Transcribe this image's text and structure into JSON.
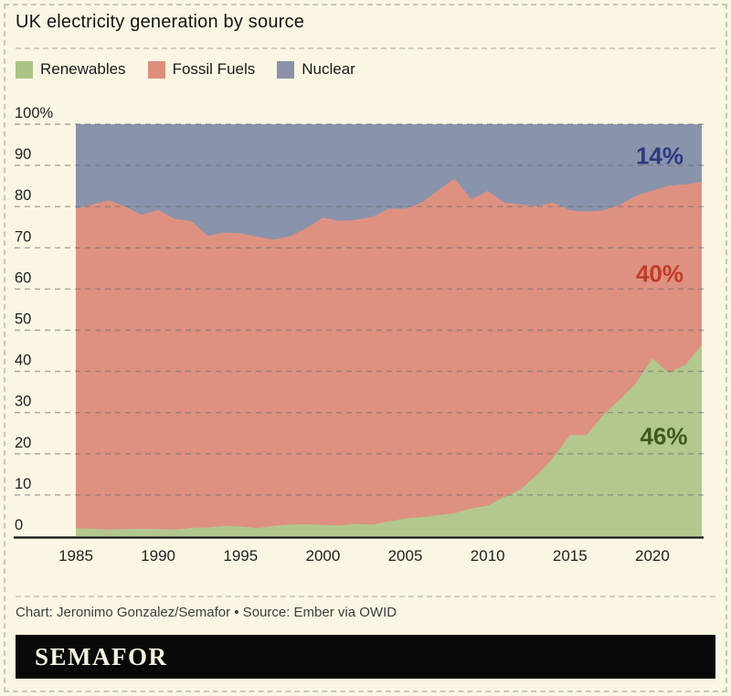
{
  "page": {
    "background": "#faf6e3",
    "border_color": "#c7c7b9"
  },
  "header": {
    "title": "UK electricity generation by source"
  },
  "legend": {
    "items": [
      {
        "label": "Renewables",
        "color": "#aac483"
      },
      {
        "label": "Fossil Fuels",
        "color": "#dd8f7c"
      },
      {
        "label": "Nuclear",
        "color": "#8a92ab"
      }
    ]
  },
  "chart_data": {
    "type": "area",
    "stacked": true,
    "unit": "percent of generation",
    "title": "UK electricity generation by source",
    "xlabel": "",
    "ylabel": "",
    "ylim": [
      0,
      100
    ],
    "yticks": [
      0,
      10,
      20,
      30,
      40,
      50,
      60,
      70,
      80,
      90,
      100
    ],
    "ytick_top_label": "100%",
    "xticks": [
      1985,
      1990,
      1995,
      2000,
      2005,
      2010,
      2015,
      2020
    ],
    "grid": "horizontal-dashed",
    "legend_position": "top",
    "x": [
      1985,
      1986,
      1987,
      1988,
      1989,
      1990,
      1991,
      1992,
      1993,
      1994,
      1995,
      1996,
      1997,
      1998,
      1999,
      2000,
      2001,
      2002,
      2003,
      2004,
      2005,
      2006,
      2007,
      2008,
      2009,
      2010,
      2011,
      2012,
      2013,
      2014,
      2015,
      2016,
      2017,
      2018,
      2019,
      2020,
      2021,
      2022,
      2023
    ],
    "series": [
      {
        "name": "Renewables",
        "color": "#b2c88e",
        "values": [
          1.9,
          1.8,
          1.6,
          1.7,
          1.8,
          1.7,
          1.6,
          2.0,
          2.1,
          2.5,
          2.4,
          1.9,
          2.5,
          2.8,
          2.9,
          2.7,
          2.6,
          3.0,
          2.8,
          3.6,
          4.3,
          4.6,
          5.1,
          5.6,
          6.7,
          7.4,
          9.5,
          11.3,
          14.9,
          19.1,
          24.6,
          24.5,
          29.3,
          33.1,
          37.1,
          43.2,
          39.7,
          41.6,
          46.4
        ]
      },
      {
        "name": "Fossil Fuels",
        "color": "#de9180",
        "values": [
          77.6,
          78.7,
          79.9,
          78.3,
          76.2,
          77.5,
          75.4,
          74.5,
          70.8,
          71.2,
          71.1,
          70.8,
          69.5,
          70.0,
          71.9,
          74.6,
          73.9,
          73.8,
          74.7,
          75.9,
          75.2,
          76.4,
          78.9,
          81.2,
          75.1,
          76.4,
          71.5,
          69.2,
          65.2,
          61.9,
          54.5,
          54.3,
          49.8,
          47.3,
          45.5,
          40.7,
          45.4,
          43.8,
          39.6
        ]
      },
      {
        "name": "Nuclear",
        "color": "#8a93ac",
        "values": [
          20.5,
          19.5,
          18.5,
          20.0,
          22.0,
          20.8,
          23.0,
          23.5,
          27.1,
          26.3,
          26.5,
          27.3,
          28.0,
          27.2,
          25.2,
          22.7,
          23.5,
          23.2,
          22.5,
          20.5,
          20.5,
          19.0,
          16.0,
          13.2,
          18.2,
          16.2,
          19.0,
          19.5,
          19.9,
          19.0,
          20.9,
          21.2,
          20.9,
          19.6,
          17.4,
          16.1,
          14.9,
          14.6,
          14.0
        ]
      }
    ],
    "annotations": [
      {
        "text": "14%",
        "series": "Nuclear",
        "color": "#2b3a80",
        "x": 2020.45,
        "y": 92.4
      },
      {
        "text": "40%",
        "series": "Fossil Fuels",
        "color": "#c23b27",
        "x": 2020.45,
        "y": 63.8
      },
      {
        "text": "46%",
        "series": "Renewables",
        "color": "#41591d",
        "x": 2020.7,
        "y": 24.3
      }
    ]
  },
  "footer": {
    "credit": "Chart: Jeronimo Gonzalez/Semafor • Source: Ember via OWID",
    "logo_text": "SEMAFOR"
  }
}
